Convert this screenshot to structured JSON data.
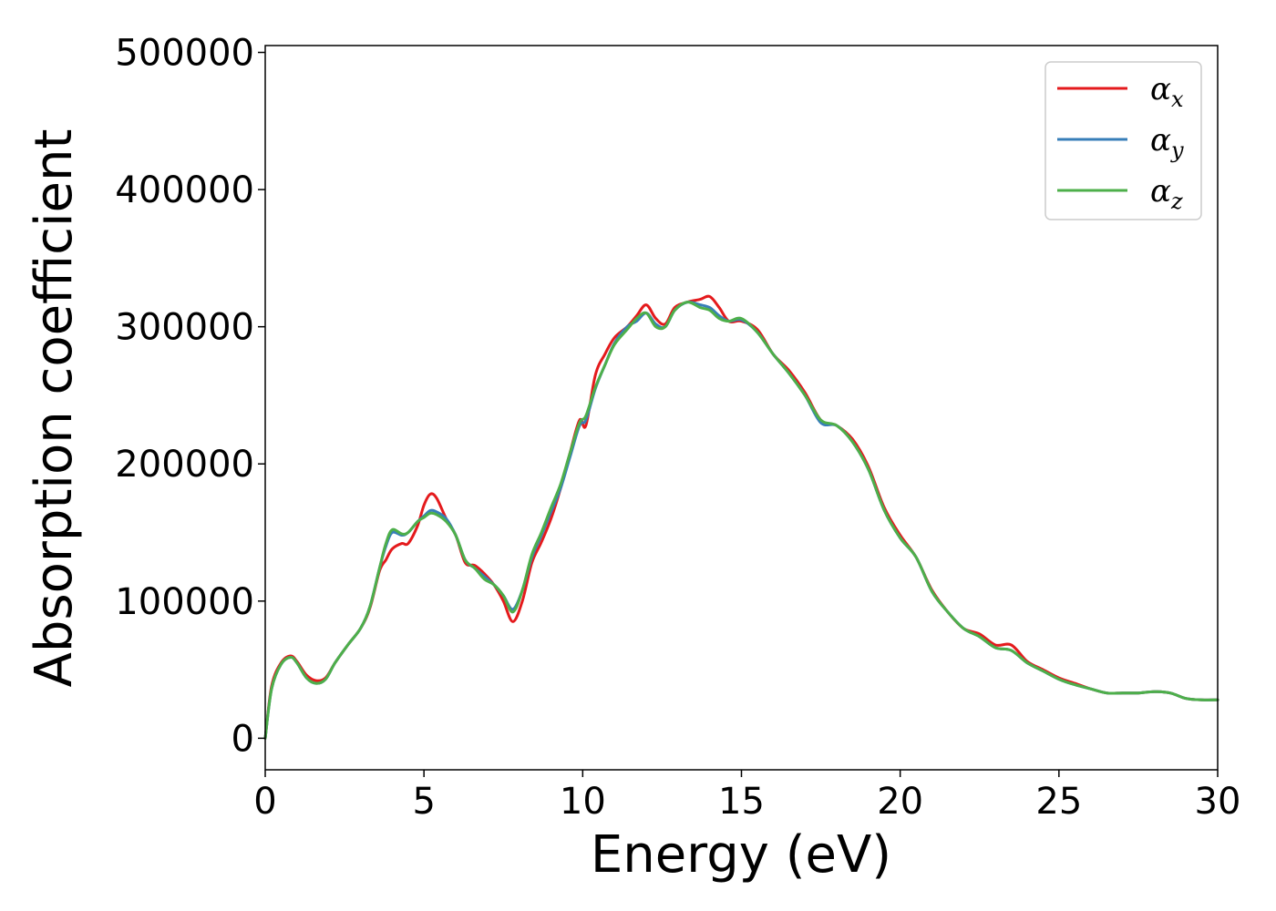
{
  "chart_data": {
    "type": "line",
    "xlabel": "Energy (eV)",
    "ylabel": "Absorption coefficient",
    "xlim": [
      0,
      30
    ],
    "ylim": [
      -23000,
      505000
    ],
    "xticks": [
      0,
      5,
      10,
      15,
      20,
      25,
      30
    ],
    "yticks": [
      0,
      100000,
      200000,
      300000,
      400000,
      500000
    ],
    "grid": false,
    "legend_position": "top-right",
    "series": [
      {
        "name_symbol": "α",
        "name_sub": "x",
        "color": "#e41a1c",
        "x": [
          0,
          0.2,
          0.5,
          0.8,
          1.0,
          1.3,
          1.6,
          1.9,
          2.2,
          2.6,
          3.0,
          3.3,
          3.6,
          3.8,
          4.0,
          4.3,
          4.5,
          4.8,
          5.0,
          5.2,
          5.4,
          5.7,
          6.0,
          6.3,
          6.6,
          6.9,
          7.2,
          7.5,
          7.8,
          8.1,
          8.4,
          8.7,
          9.0,
          9.3,
          9.6,
          9.9,
          10.1,
          10.4,
          10.7,
          11.0,
          11.4,
          11.7,
          12.0,
          12.3,
          12.6,
          12.9,
          13.3,
          13.7,
          14.0,
          14.3,
          14.6,
          15.0,
          15.5,
          16.0,
          16.5,
          17.0,
          17.5,
          18.0,
          18.5,
          19.0,
          19.5,
          20.0,
          20.5,
          21.0,
          21.5,
          22.0,
          22.5,
          23.0,
          23.5,
          24.0,
          24.5,
          25.0,
          25.5,
          26.0,
          26.5,
          27.0,
          27.5,
          28.0,
          28.5,
          29.0,
          29.5,
          30.0
        ],
        "y": [
          0,
          38000,
          55000,
          60000,
          56000,
          46000,
          42000,
          44000,
          55000,
          68000,
          80000,
          95000,
          122000,
          130000,
          138000,
          142000,
          142000,
          155000,
          170000,
          178000,
          175000,
          160000,
          148000,
          128000,
          126000,
          120000,
          112000,
          100000,
          85000,
          100000,
          128000,
          143000,
          160000,
          182000,
          208000,
          232000,
          228000,
          265000,
          280000,
          292000,
          300000,
          308000,
          316000,
          306000,
          302000,
          314000,
          318000,
          320000,
          322000,
          314000,
          304000,
          304000,
          298000,
          280000,
          268000,
          252000,
          232000,
          228000,
          218000,
          198000,
          168000,
          148000,
          132000,
          108000,
          92000,
          80000,
          76000,
          68000,
          68000,
          56000,
          50000,
          44000,
          40000,
          36000,
          33000,
          33000,
          33000,
          34000,
          33000,
          29000,
          28000,
          28000
        ]
      },
      {
        "name_symbol": "α",
        "name_sub": "y",
        "color": "#377eb8",
        "x": [
          0,
          0.2,
          0.5,
          0.8,
          1.0,
          1.3,
          1.6,
          1.9,
          2.2,
          2.6,
          3.0,
          3.3,
          3.6,
          3.8,
          4.0,
          4.3,
          4.5,
          4.8,
          5.0,
          5.2,
          5.4,
          5.7,
          6.0,
          6.3,
          6.6,
          6.9,
          7.2,
          7.5,
          7.8,
          8.1,
          8.4,
          8.7,
          9.0,
          9.3,
          9.6,
          9.9,
          10.1,
          10.4,
          10.7,
          11.0,
          11.4,
          11.7,
          12.0,
          12.3,
          12.6,
          12.9,
          13.3,
          13.7,
          14.0,
          14.3,
          14.6,
          15.0,
          15.5,
          16.0,
          16.5,
          17.0,
          17.5,
          18.0,
          18.5,
          19.0,
          19.5,
          20.0,
          20.5,
          21.0,
          21.5,
          22.0,
          22.5,
          23.0,
          23.5,
          24.0,
          24.5,
          25.0,
          25.5,
          26.0,
          26.5,
          27.0,
          27.5,
          28.0,
          28.5,
          29.0,
          29.5,
          30.0
        ],
        "y": [
          0,
          36000,
          54000,
          59000,
          55000,
          44000,
          40000,
          43000,
          55000,
          68000,
          80000,
          96000,
          124000,
          140000,
          150000,
          148000,
          150000,
          158000,
          162000,
          166000,
          165000,
          160000,
          148000,
          130000,
          124000,
          118000,
          112000,
          104000,
          94000,
          108000,
          132000,
          148000,
          165000,
          182000,
          205000,
          228000,
          232000,
          255000,
          272000,
          288000,
          300000,
          304000,
          310000,
          302000,
          300000,
          312000,
          318000,
          316000,
          314000,
          308000,
          304000,
          305000,
          296000,
          280000,
          266000,
          250000,
          230000,
          228000,
          216000,
          196000,
          166000,
          146000,
          132000,
          107000,
          92000,
          80000,
          74000,
          66000,
          64000,
          55000,
          49000,
          43000,
          39000,
          36000,
          33000,
          33000,
          33000,
          34000,
          33000,
          29000,
          28000,
          28000
        ]
      },
      {
        "name_symbol": "α",
        "name_sub": "z",
        "color": "#4daf4a",
        "x": [
          0,
          0.2,
          0.5,
          0.8,
          1.0,
          1.3,
          1.6,
          1.9,
          2.2,
          2.6,
          3.0,
          3.3,
          3.6,
          3.8,
          4.0,
          4.3,
          4.5,
          4.8,
          5.0,
          5.2,
          5.4,
          5.7,
          6.0,
          6.3,
          6.6,
          6.9,
          7.2,
          7.5,
          7.8,
          8.1,
          8.4,
          8.7,
          9.0,
          9.3,
          9.6,
          9.9,
          10.1,
          10.4,
          10.7,
          11.0,
          11.4,
          11.7,
          12.0,
          12.3,
          12.6,
          12.9,
          13.3,
          13.7,
          14.0,
          14.3,
          14.6,
          15.0,
          15.5,
          16.0,
          16.5,
          17.0,
          17.5,
          18.0,
          18.5,
          19.0,
          19.5,
          20.0,
          20.5,
          21.0,
          21.5,
          22.0,
          22.5,
          23.0,
          23.5,
          24.0,
          24.5,
          25.0,
          25.5,
          26.0,
          26.5,
          27.0,
          27.5,
          28.0,
          28.5,
          29.0,
          29.5,
          30.0
        ],
        "y": [
          0,
          36000,
          54000,
          59000,
          55000,
          44000,
          40000,
          43000,
          55000,
          68000,
          80000,
          96000,
          124000,
          142000,
          152000,
          149000,
          150000,
          158000,
          161000,
          164000,
          163000,
          158000,
          148000,
          130000,
          124000,
          116000,
          112000,
          104000,
          92000,
          108000,
          134000,
          150000,
          168000,
          185000,
          208000,
          230000,
          235000,
          256000,
          272000,
          287000,
          298000,
          306000,
          310000,
          300000,
          300000,
          312000,
          318000,
          314000,
          312000,
          306000,
          304000,
          306000,
          296000,
          280000,
          266000,
          250000,
          232000,
          228000,
          216000,
          196000,
          166000,
          146000,
          132000,
          107000,
          92000,
          80000,
          74000,
          66000,
          64000,
          55000,
          49000,
          43000,
          39000,
          36000,
          33000,
          33000,
          33000,
          34000,
          33000,
          29000,
          28000,
          28000
        ]
      }
    ]
  }
}
